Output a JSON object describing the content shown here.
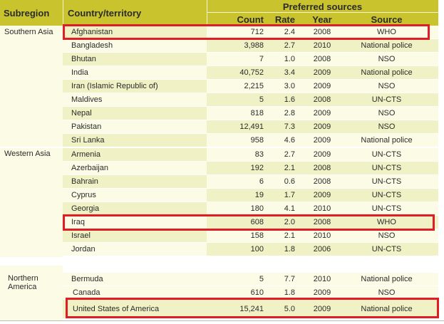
{
  "header": {
    "subregion": "Subregion",
    "country": "Country/territory",
    "preferred_sources": "Preferred sources",
    "count": "Count",
    "rate": "Rate",
    "year": "Year",
    "source": "Source"
  },
  "subregions": {
    "southern_asia": "Southern Asia",
    "western_asia": "Western Asia",
    "northern_america": "Northern America"
  },
  "rows": [
    {
      "country": "Afghanistan",
      "count": "712",
      "rate": "2.4",
      "year": "2008",
      "source": "WHO"
    },
    {
      "country": "Bangladesh",
      "count": "3,988",
      "rate": "2.7",
      "year": "2010",
      "source": "National police"
    },
    {
      "country": "Bhutan",
      "count": "7",
      "rate": "1.0",
      "year": "2008",
      "source": "NSO"
    },
    {
      "country": "India",
      "count": "40,752",
      "rate": "3.4",
      "year": "2009",
      "source": "National police"
    },
    {
      "country": "Iran (Islamic Republic of)",
      "count": "2,215",
      "rate": "3.0",
      "year": "2009",
      "source": "NSO"
    },
    {
      "country": "Maldives",
      "count": "5",
      "rate": "1.6",
      "year": "2008",
      "source": "UN-CTS"
    },
    {
      "country": "Nepal",
      "count": "818",
      "rate": "2.8",
      "year": "2009",
      "source": "NSO"
    },
    {
      "country": "Pakistan",
      "count": "12,491",
      "rate": "7.3",
      "year": "2009",
      "source": "NSO"
    },
    {
      "country": "Sri Lanka",
      "count": "958",
      "rate": "4.6",
      "year": "2009",
      "source": "National police"
    },
    {
      "country": "Armenia",
      "count": "83",
      "rate": "2.7",
      "year": "2009",
      "source": "UN-CTS"
    },
    {
      "country": "Azerbaijan",
      "count": "192",
      "rate": "2.1",
      "year": "2008",
      "source": "UN-CTS"
    },
    {
      "country": "Bahrain",
      "count": "6",
      "rate": "0.6",
      "year": "2008",
      "source": "UN-CTS"
    },
    {
      "country": "Cyprus",
      "count": "19",
      "rate": "1.7",
      "year": "2009",
      "source": "UN-CTS"
    },
    {
      "country": "Georgia",
      "count": "180",
      "rate": "4.1",
      "year": "2010",
      "source": "UN-CTS"
    },
    {
      "country": "Iraq",
      "count": "608",
      "rate": "2.0",
      "year": "2008",
      "source": "WHO"
    },
    {
      "country": "Israel",
      "count": "158",
      "rate": "2.1",
      "year": "2010",
      "source": "NSO"
    },
    {
      "country": "Jordan",
      "count": "100",
      "rate": "1.8",
      "year": "2006",
      "source": "UN-CTS"
    },
    {
      "country": "Bermuda",
      "count": "5",
      "rate": "7.7",
      "year": "2010",
      "source": "National police"
    },
    {
      "country": "Canada",
      "count": "610",
      "rate": "1.8",
      "year": "2009",
      "source": "NSO"
    },
    {
      "country": "United States of America",
      "count": "15,241",
      "rate": "5.0",
      "year": "2009",
      "source": "National police"
    }
  ],
  "colors": {
    "header_bg": "#c9c32e",
    "row_light": "#fbfbe6",
    "row_dark": "#f1f1c6",
    "highlight": "#e01c24"
  }
}
